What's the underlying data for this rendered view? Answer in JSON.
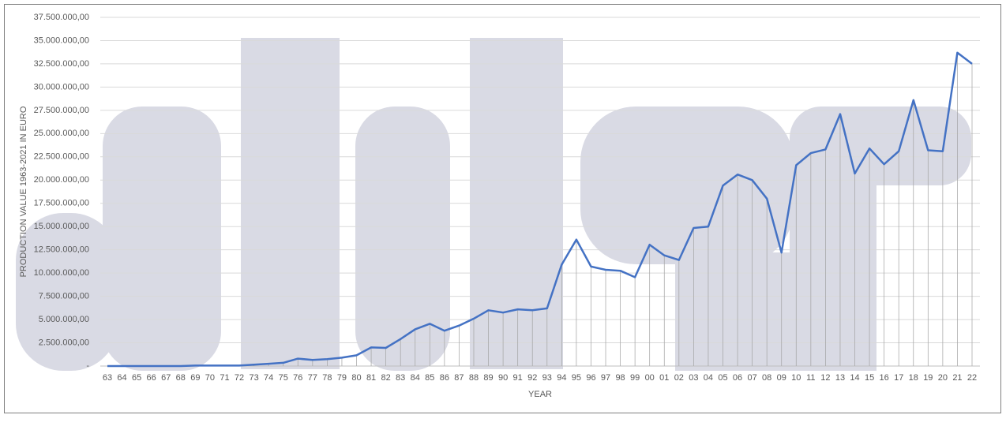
{
  "chart_data": {
    "type": "line",
    "y_label": "PRODUCTION VALUE 1963-2021 IN EURO",
    "x_label": "YEAR",
    "categories": [
      "63",
      "64",
      "65",
      "66",
      "67",
      "68",
      "69",
      "70",
      "71",
      "72",
      "73",
      "74",
      "75",
      "76",
      "77",
      "78",
      "79",
      "80",
      "81",
      "82",
      "83",
      "84",
      "85",
      "86",
      "87",
      "88",
      "89",
      "90",
      "91",
      "92",
      "93",
      "94",
      "95",
      "96",
      "97",
      "98",
      "99",
      "00",
      "01",
      "02",
      "03",
      "04",
      "05",
      "06",
      "07",
      "08",
      "09",
      "10",
      "11",
      "12",
      "13",
      "14",
      "15",
      "16",
      "17",
      "18",
      "19",
      "20",
      "21",
      "22"
    ],
    "series": [
      {
        "name": "Production value",
        "color": "#4472c4",
        "values": [
          0,
          0,
          0,
          0,
          0,
          0,
          50000,
          50000,
          50000,
          50000,
          150000,
          250000,
          350000,
          800000,
          650000,
          750000,
          900000,
          1150000,
          2000000,
          1950000,
          2900000,
          3950000,
          4550000,
          3800000,
          4350000,
          5100000,
          6000000,
          5750000,
          6100000,
          6000000,
          6200000,
          10900000,
          13600000,
          10700000,
          10350000,
          10250000,
          9550000,
          13050000,
          11900000,
          11400000,
          14850000,
          15000000,
          19400000,
          20600000,
          20000000,
          18000000,
          12200000,
          21600000,
          22900000,
          23300000,
          27100000,
          20700000,
          23400000,
          21700000,
          23100000,
          28600000,
          23200000,
          23100000,
          33700000,
          32500000
        ]
      }
    ],
    "ylim": [
      0,
      37500000
    ],
    "yticks": [
      {
        "value": 0,
        "label": "-"
      },
      {
        "value": 2500000,
        "label": "2.500.000,00"
      },
      {
        "value": 5000000,
        "label": "5.000.000,00"
      },
      {
        "value": 7500000,
        "label": "7.500.000,00"
      },
      {
        "value": 10000000,
        "label": "10.000.000,00"
      },
      {
        "value": 12500000,
        "label": "12.500.000,00"
      },
      {
        "value": 15000000,
        "label": "15.000.000,00"
      },
      {
        "value": 17500000,
        "label": "17.500.000,00"
      },
      {
        "value": 20000000,
        "label": "20.000.000,00"
      },
      {
        "value": 22500000,
        "label": "22.500.000,00"
      },
      {
        "value": 25000000,
        "label": "25.000.000,00"
      },
      {
        "value": 27500000,
        "label": "27.500.000,00"
      },
      {
        "value": 30000000,
        "label": "30.000.000,00"
      },
      {
        "value": 32500000,
        "label": "32.500.000,00"
      },
      {
        "value": 35000000,
        "label": "35.000.000,00"
      },
      {
        "value": 37500000,
        "label": "37.500.000,00"
      }
    ],
    "grid": true,
    "drop_lines": true
  }
}
